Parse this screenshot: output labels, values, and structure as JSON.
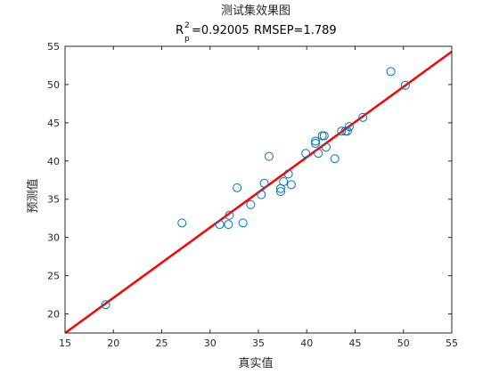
{
  "chart_data": {
    "type": "scatter",
    "title": "测试集效果图",
    "subtitle": {
      "r_base": "R",
      "r_superscript": "2",
      "r_subscript": "p",
      "r2_text": "=0.92005",
      "rmsep_text": "RMSEP=1.789"
    },
    "xlabel": "真实值",
    "ylabel": "预测值",
    "xlim": [
      15,
      55
    ],
    "ylim": [
      17.5,
      55
    ],
    "xticks": [
      15,
      20,
      25,
      30,
      35,
      40,
      45,
      50,
      55
    ],
    "yticks": [
      20,
      25,
      30,
      35,
      40,
      45,
      50,
      55
    ],
    "grid": false,
    "series": [
      {
        "marker": "circle",
        "color": "#0072BD",
        "points": [
          [
            19.2,
            21.2
          ],
          [
            27.1,
            31.9
          ],
          [
            31.0,
            31.7
          ],
          [
            31.9,
            31.7
          ],
          [
            32.0,
            32.9
          ],
          [
            32.8,
            36.5
          ],
          [
            33.4,
            31.9
          ],
          [
            34.2,
            34.3
          ],
          [
            35.3,
            35.6
          ],
          [
            35.6,
            37.1
          ],
          [
            36.1,
            40.6
          ],
          [
            37.3,
            36.0
          ],
          [
            37.3,
            36.4
          ],
          [
            37.6,
            37.3
          ],
          [
            38.1,
            38.3
          ],
          [
            38.4,
            36.9
          ],
          [
            39.9,
            41.0
          ],
          [
            40.9,
            42.3
          ],
          [
            40.9,
            42.6
          ],
          [
            41.2,
            41.0
          ],
          [
            41.6,
            43.3
          ],
          [
            41.8,
            43.3
          ],
          [
            42.0,
            41.8
          ],
          [
            42.9,
            40.3
          ],
          [
            43.6,
            43.9
          ],
          [
            44.0,
            43.9
          ],
          [
            44.2,
            43.9
          ],
          [
            44.4,
            44.5
          ],
          [
            45.8,
            45.7
          ],
          [
            48.7,
            51.7
          ],
          [
            50.2,
            49.9
          ]
        ]
      }
    ],
    "fit_line": {
      "color": "#FF0000",
      "x": [
        15,
        55
      ],
      "y": [
        17.5,
        54.3
      ]
    }
  }
}
